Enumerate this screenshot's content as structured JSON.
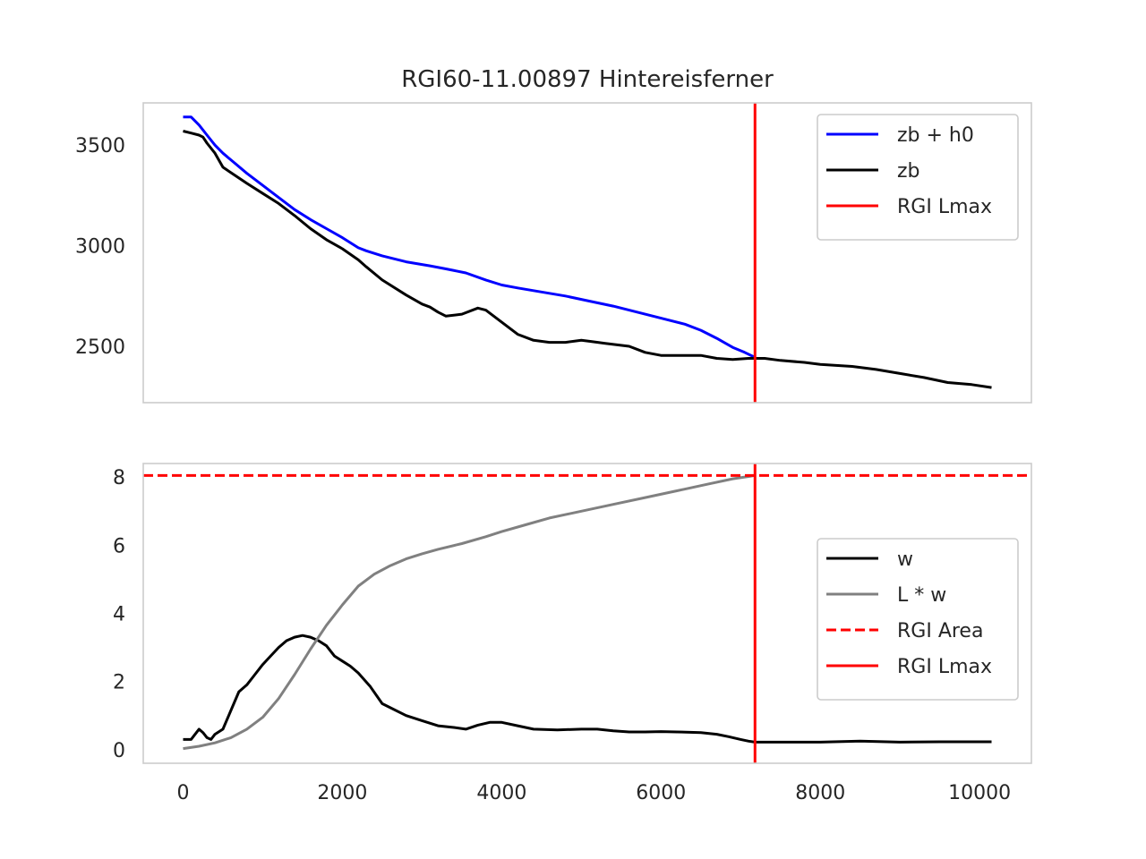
{
  "chart_data": [
    {
      "type": "line",
      "title": "RGI60-11.00897 Hintereisferner",
      "xlabel": "",
      "ylabel": "",
      "xlim": [
        -500,
        10650
      ],
      "ylim": [
        2220,
        3710
      ],
      "yticks": [
        2500,
        3000,
        3500
      ],
      "grid": false,
      "legend_placement": "upper right",
      "series": [
        {
          "name": "zb + h0",
          "color": "#0000ff",
          "x": [
            0,
            100,
            200,
            300,
            400,
            500,
            650,
            800,
            1000,
            1200,
            1400,
            1600,
            1800,
            2000,
            2200,
            2300,
            2500,
            2800,
            3100,
            3300,
            3550,
            3800,
            4000,
            4200,
            4500,
            4800,
            5100,
            5400,
            5700,
            6000,
            6300,
            6500,
            6700,
            6900,
            7050,
            7180
          ],
          "y": [
            3640,
            3640,
            3600,
            3550,
            3500,
            3460,
            3410,
            3360,
            3300,
            3240,
            3180,
            3130,
            3085,
            3040,
            2990,
            2975,
            2950,
            2920,
            2900,
            2885,
            2865,
            2830,
            2805,
            2790,
            2770,
            2750,
            2725,
            2700,
            2670,
            2640,
            2610,
            2580,
            2540,
            2495,
            2470,
            2445
          ]
        },
        {
          "name": "zb",
          "color": "#000000",
          "x": [
            0,
            100,
            200,
            250,
            300,
            400,
            500,
            650,
            800,
            1000,
            1200,
            1400,
            1600,
            1800,
            2000,
            2200,
            2300,
            2500,
            2800,
            3000,
            3100,
            3200,
            3300,
            3500,
            3700,
            3800,
            3900,
            4000,
            4200,
            4400,
            4600,
            4800,
            5000,
            5100,
            5300,
            5600,
            5800,
            6000,
            6200,
            6500,
            6700,
            6900,
            7100,
            7300,
            7500,
            7800,
            8000,
            8400,
            8700,
            9000,
            9300,
            9600,
            9900,
            10150
          ],
          "y": [
            3570,
            3560,
            3550,
            3540,
            3510,
            3460,
            3390,
            3350,
            3310,
            3260,
            3210,
            3150,
            3085,
            3030,
            2985,
            2930,
            2895,
            2830,
            2755,
            2710,
            2695,
            2670,
            2650,
            2660,
            2690,
            2680,
            2650,
            2620,
            2560,
            2530,
            2520,
            2520,
            2530,
            2525,
            2515,
            2500,
            2470,
            2455,
            2455,
            2455,
            2440,
            2435,
            2440,
            2440,
            2430,
            2420,
            2410,
            2400,
            2385,
            2365,
            2345,
            2320,
            2310,
            2295
          ]
        }
      ],
      "annotations": [
        {
          "name": "RGI Lmax",
          "kind": "vline",
          "x": 7180,
          "color": "#ff0000",
          "style": "solid"
        }
      ]
    },
    {
      "type": "line",
      "title": "",
      "xlabel": "",
      "ylabel": "",
      "xlim": [
        -500,
        10650
      ],
      "ylim": [
        -0.4,
        8.4
      ],
      "xticks": [
        0,
        2000,
        4000,
        6000,
        8000,
        10000
      ],
      "yticks": [
        0,
        2,
        4,
        6,
        8
      ],
      "grid": false,
      "legend_placement": "center right",
      "series": [
        {
          "name": "w",
          "color": "#000000",
          "x": [
            0,
            100,
            200,
            250,
            300,
            350,
            400,
            500,
            600,
            700,
            800,
            900,
            1000,
            1100,
            1200,
            1300,
            1400,
            1500,
            1600,
            1700,
            1800,
            1900,
            2000,
            2100,
            2200,
            2350,
            2500,
            2800,
            3000,
            3200,
            3400,
            3550,
            3700,
            3850,
            4000,
            4200,
            4400,
            4700,
            5000,
            5200,
            5400,
            5600,
            5800,
            6000,
            6200,
            6500,
            6700,
            6850,
            7000,
            7100,
            7180,
            7500,
            8000,
            8500,
            9000,
            9500,
            10000,
            10150
          ],
          "y": [
            0.3,
            0.3,
            0.6,
            0.5,
            0.35,
            0.3,
            0.45,
            0.6,
            1.15,
            1.7,
            1.9,
            2.2,
            2.5,
            2.75,
            3.0,
            3.2,
            3.3,
            3.35,
            3.3,
            3.2,
            3.05,
            2.75,
            2.6,
            2.45,
            2.25,
            1.85,
            1.35,
            1.0,
            0.85,
            0.7,
            0.65,
            0.6,
            0.72,
            0.8,
            0.8,
            0.7,
            0.6,
            0.58,
            0.6,
            0.6,
            0.55,
            0.52,
            0.52,
            0.53,
            0.52,
            0.5,
            0.45,
            0.38,
            0.3,
            0.25,
            0.22,
            0.22,
            0.22,
            0.25,
            0.22,
            0.23,
            0.23,
            0.23
          ]
        },
        {
          "name": "L * w",
          "color": "#808080",
          "x": [
            0,
            200,
            400,
            600,
            800,
            1000,
            1200,
            1400,
            1600,
            1800,
            2000,
            2200,
            2400,
            2600,
            2800,
            3000,
            3200,
            3500,
            3800,
            4000,
            4300,
            4600,
            5000,
            5400,
            5800,
            6200,
            6600,
            6900,
            7100,
            7180
          ],
          "y": [
            0.03,
            0.1,
            0.2,
            0.35,
            0.6,
            0.95,
            1.5,
            2.2,
            2.95,
            3.65,
            4.25,
            4.8,
            5.15,
            5.4,
            5.6,
            5.75,
            5.88,
            6.05,
            6.25,
            6.4,
            6.6,
            6.8,
            7.0,
            7.2,
            7.4,
            7.6,
            7.8,
            7.95,
            8.02,
            8.05
          ]
        }
      ],
      "annotations": [
        {
          "name": "RGI Area",
          "kind": "hline",
          "y": 8.05,
          "color": "#ff0000",
          "style": "dashed"
        },
        {
          "name": "RGI Lmax",
          "kind": "vline",
          "x": 7180,
          "color": "#ff0000",
          "style": "solid"
        }
      ]
    }
  ]
}
